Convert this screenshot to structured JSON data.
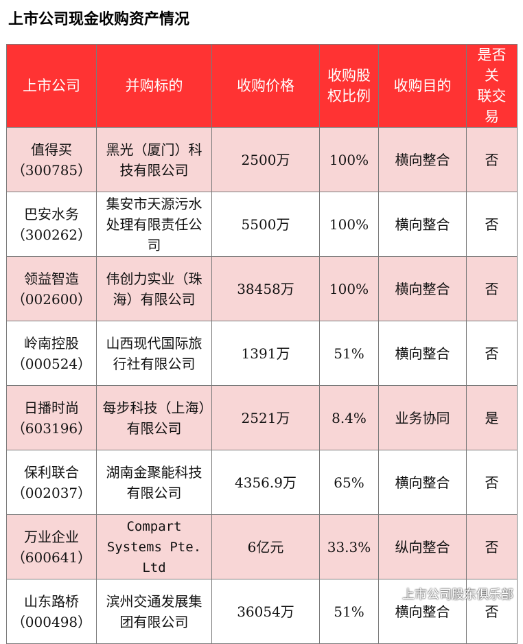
{
  "title": "上市公司现金收购资产情况",
  "table": {
    "headers": [
      "上市公司",
      "并购标的",
      "收购价格",
      "收购股权比例",
      "收购目的",
      "是否关联交易"
    ],
    "header_lines": [
      [
        "上市公司"
      ],
      [
        "并购标的"
      ],
      [
        "收购价格"
      ],
      [
        "收购股",
        "权比例"
      ],
      [
        "收购目的"
      ],
      [
        "是否关",
        "联交易"
      ]
    ],
    "rows": [
      {
        "company": "值得买",
        "code": "（300785）",
        "target": "黑光（厦门）科技有限公司",
        "price": "2500万",
        "ratio": "100%",
        "purpose": "横向整合",
        "related": "否"
      },
      {
        "company": "巴安水务",
        "code": "（300262）",
        "target": "集安市天源污水处理有限责任公司",
        "price": "5500万",
        "ratio": "100%",
        "purpose": "横向整合",
        "related": "否"
      },
      {
        "company": "领益智造",
        "code": "（002600）",
        "target": "伟创力实业（珠海）有限公司",
        "price": "38458万",
        "ratio": "100%",
        "purpose": "横向整合",
        "related": "否"
      },
      {
        "company": "岭南控股",
        "code": "（000524）",
        "target": "山西现代国际旅行社有限公司",
        "price": "1391万",
        "ratio": "51%",
        "purpose": "横向整合",
        "related": "否"
      },
      {
        "company": "日播时尚",
        "code": "（603196）",
        "target": "每步科技（上海）有限公司",
        "price": "2521万",
        "ratio": "8.4%",
        "purpose": "业务协同",
        "related": "是"
      },
      {
        "company": "保利联合",
        "code": "（002037）",
        "target": "湖南金聚能科技有限公司",
        "price": "4356.9万",
        "ratio": "65%",
        "purpose": "横向整合",
        "related": "否"
      },
      {
        "company": "万业企业",
        "code": "（600641）",
        "target": "Compart Systems Pte. Ltd",
        "price": "6亿元",
        "ratio": "33.3%",
        "purpose": "纵向整合",
        "related": "否"
      },
      {
        "company": "山东路桥",
        "code": "（000498）",
        "target": "滨州交通发展集团有限公司",
        "price": "36054万",
        "ratio": "51%",
        "purpose": "横向整合",
        "related": "否"
      }
    ]
  },
  "watermark": {
    "text": "上市公司股东俱乐部",
    "icon": "wechat-icon"
  }
}
